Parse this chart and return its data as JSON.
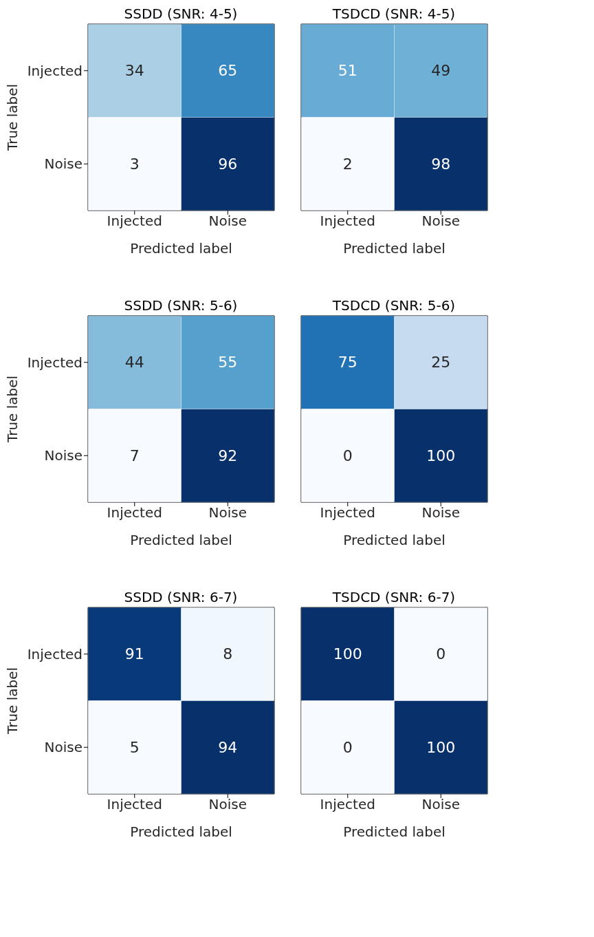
{
  "chart_data": [
    {
      "type": "heatmap",
      "title": "SSDD (SNR: 4-5)",
      "xlabel": "Predicted label",
      "ylabel": "True label",
      "categories": [
        "Injected",
        "Noise"
      ],
      "y_categories": [
        "Injected",
        "Noise"
      ],
      "cells": [
        [
          34,
          65
        ],
        [
          3,
          96
        ]
      ],
      "data_labels": true
    },
    {
      "type": "heatmap",
      "title": "TSDCD (SNR: 4-5)",
      "xlabel": "Predicted label",
      "categories": [
        "Injected",
        "Noise"
      ],
      "y_categories": [
        null,
        null
      ],
      "cells": [
        [
          51,
          49
        ],
        [
          2,
          98
        ]
      ],
      "data_labels": true,
      "tick_labels": "x"
    },
    {
      "type": "heatmap",
      "title": "SSDD (SNR: 5-6)",
      "xlabel": "Predicted label",
      "ylabel": "True label",
      "categories": [
        "Injected",
        "Noise"
      ],
      "y_categories": [
        "Injected",
        "Noise"
      ],
      "cells": [
        [
          44,
          55
        ],
        [
          7,
          92
        ]
      ],
      "data_labels": true
    },
    {
      "type": "heatmap",
      "title": "TSDCD (SNR: 5-6)",
      "xlabel": "Predicted label",
      "categories": [
        "Injected",
        "Noise"
      ],
      "y_categories": [
        null,
        null
      ],
      "cells": [
        [
          75,
          25
        ],
        [
          0,
          100
        ]
      ],
      "data_labels": true,
      "tick_labels": "x"
    },
    {
      "type": "heatmap",
      "title": "SSDD (SNR: 6-7)",
      "xlabel": "Predicted label",
      "ylabel": "True label",
      "categories": [
        "Injected",
        "Noise"
      ],
      "y_categories": [
        "Injected",
        "Noise"
      ],
      "cells": [
        [
          91,
          8
        ],
        [
          5,
          94
        ]
      ],
      "data_labels": true
    },
    {
      "type": "heatmap",
      "title": "TSDCD (SNR: 6-7)",
      "xlabel": "Predicted label",
      "categories": [
        "Injected",
        "Noise"
      ],
      "y_categories": [
        null,
        null
      ],
      "cells": [
        [
          100,
          0
        ],
        [
          0,
          100
        ]
      ],
      "data_labels": true,
      "tick_labels": "x"
    }
  ]
}
